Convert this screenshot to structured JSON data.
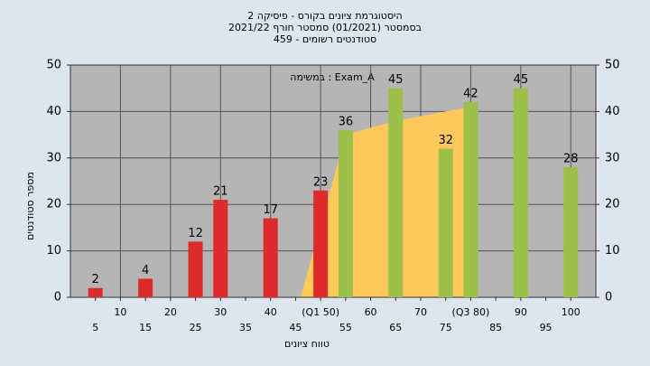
{
  "chart_data": {
    "type": "bar",
    "title": "היסטוגרמת ציונים בקורס - פיסיקה 2",
    "subtitle": "בסמסטר (01/2021) סמסטר חורף 2021/22",
    "subtitle2": "סטודנטים רשומים - 459",
    "annotation": "במשימה : Exam_A",
    "x_label": "טווח ציונים",
    "y_label": "מספר סטודנטים",
    "xlim": [
      0,
      105
    ],
    "xticks": [
      5,
      10,
      15,
      20,
      25,
      30,
      35,
      40,
      45,
      {
        "value": 50,
        "label": "(Q1 50)"
      },
      55,
      60,
      65,
      70,
      75,
      {
        "value": 80,
        "label": "(Q3 80)"
      },
      85,
      90,
      95,
      100
    ],
    "ylim": [
      0,
      50
    ],
    "yticks": [
      0,
      10,
      20,
      30,
      40,
      50
    ],
    "grid": true,
    "series": [
      {
        "x": [
          5,
          15,
          25,
          30,
          40,
          50,
          55,
          65,
          75,
          80,
          90,
          100
        ],
        "values": [
          2,
          4,
          12,
          21,
          17,
          23,
          36,
          45,
          32,
          42,
          45,
          28
        ],
        "colors": [
          "#dd2a2a",
          "#dd2a2a",
          "#dd2a2a",
          "#dd2a2a",
          "#dd2a2a",
          "#dd2a2a",
          "#9cc04a",
          "#9cc04a",
          "#9cc04a",
          "#9cc04a",
          "#9cc04a",
          "#9cc04a"
        ]
      }
    ],
    "area": {
      "x": [
        46,
        55,
        65,
        75,
        80,
        81
      ],
      "values": [
        0,
        35,
        38,
        40,
        41,
        0
      ],
      "color": "#fdc95a"
    }
  }
}
